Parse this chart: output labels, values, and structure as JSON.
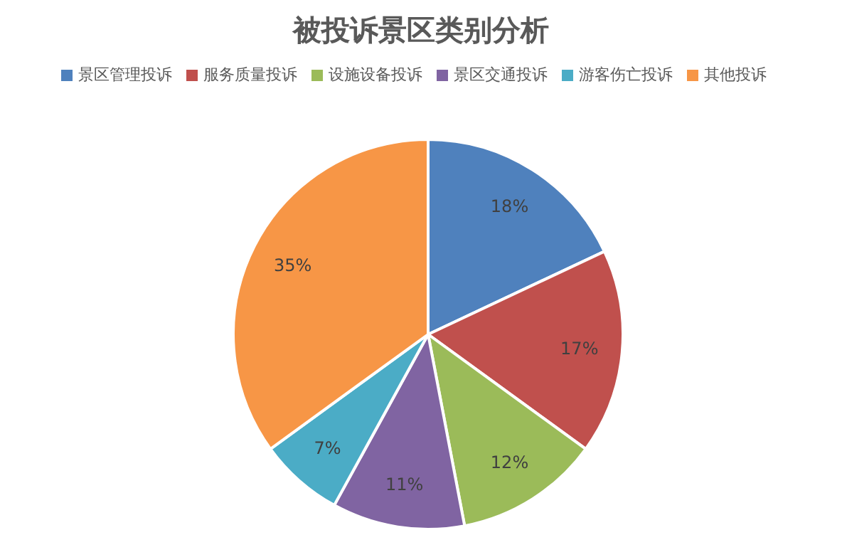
{
  "chart_data": {
    "type": "pie",
    "title": "被投诉景区类别分析",
    "categories": [
      "景区管理投诉",
      "服务质量投诉",
      "设施设备投诉",
      "景区交通投诉",
      "游客伤亡投诉",
      "其他投诉"
    ],
    "values": [
      18,
      17,
      12,
      11,
      7,
      35
    ],
    "colors": [
      "#4f81bd",
      "#c0504d",
      "#9bbb59",
      "#8064a2",
      "#4bacc6",
      "#f79646"
    ],
    "value_labels": [
      "18%",
      "17%",
      "12%",
      "11%",
      "7%",
      "35%"
    ],
    "legend": "top"
  }
}
